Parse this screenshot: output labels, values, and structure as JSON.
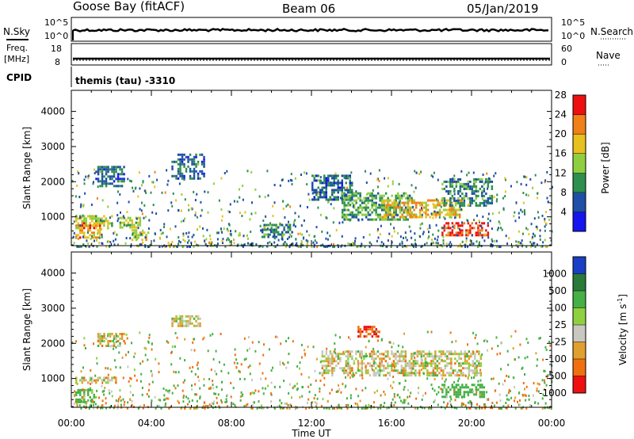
{
  "header": {
    "station": "Goose Bay (fitACF)",
    "beam": "Beam 06",
    "date": "05/Jan/2019"
  },
  "top_panels": {
    "nsky_label": "N.Sky",
    "nsearch_label": "N.Search",
    "left_ticks": [
      "10^5",
      "10^0"
    ],
    "right_ticks": [
      "10^5",
      "10^0"
    ],
    "freq_label_1": "Freq.",
    "freq_label_2": "[MHz]",
    "freq_ticks": [
      "18",
      "8"
    ],
    "nave_label": "Nave",
    "nave_ticks": [
      "60",
      "0"
    ],
    "cpid_label": "CPID",
    "cpid_value": "themis (tau) -3310"
  },
  "axes": {
    "ylabel": "Slant Range [km]",
    "xlabel": "Time UT",
    "y_ticks": [
      "1000",
      "2000",
      "3000",
      "4000"
    ],
    "x_ticks": [
      "00:00",
      "04:00",
      "08:00",
      "12:00",
      "16:00",
      "20:00",
      "00:00"
    ]
  },
  "colorbars": {
    "power": {
      "label": "Power [dB]",
      "ticks": [
        "4",
        "8",
        "12",
        "16",
        "20",
        "24",
        "28"
      ],
      "colors": [
        "#1515ee",
        "#1f4fa6",
        "#2f8f4f",
        "#8fcf3f",
        "#e8c020",
        "#f08018",
        "#ee1010"
      ]
    },
    "velocity": {
      "label": "Velocity [m s",
      "label_sup": "-1",
      "label_end": "]",
      "ticks": [
        "1000",
        "500",
        "100",
        "25",
        "-25",
        "-100",
        "-500",
        "-1000"
      ],
      "colors": [
        "#1a3fc4",
        "#2a7a3a",
        "#45b045",
        "#90d040",
        "#c8c8c0",
        "#e0a030",
        "#f07010",
        "#ee1010"
      ]
    }
  },
  "chart_data": [
    {
      "type": "heatmap",
      "name": "power",
      "xlim_hours": [
        0,
        24
      ],
      "ylim_km": [
        180,
        4600
      ],
      "colorbar_range_db": [
        0,
        30
      ],
      "regions": [
        {
          "t": [
            0.2,
            2.0
          ],
          "r": [
            700,
            1050
          ],
          "power": 16
        },
        {
          "t": [
            0.2,
            1.4
          ],
          "r": [
            400,
            850
          ],
          "power": 22
        },
        {
          "t": [
            1.2,
            2.6
          ],
          "r": [
            1900,
            2450
          ],
          "power": 8
        },
        {
          "t": [
            2.4,
            3.4
          ],
          "r": [
            700,
            1000
          ],
          "power": 16
        },
        {
          "t": [
            3.0,
            3.8
          ],
          "r": [
            350,
            650
          ],
          "power": 18
        },
        {
          "t": [
            5.0,
            6.6
          ],
          "r": [
            2100,
            2800
          ],
          "power": 8
        },
        {
          "t": [
            9.5,
            11.0
          ],
          "r": [
            400,
            800
          ],
          "power": 10
        },
        {
          "t": [
            12.0,
            14.0
          ],
          "r": [
            1500,
            2200
          ],
          "power": 8
        },
        {
          "t": [
            13.5,
            17.0
          ],
          "r": [
            900,
            1700
          ],
          "power": 12
        },
        {
          "t": [
            15.5,
            19.5
          ],
          "r": [
            1000,
            1500
          ],
          "power": 20
        },
        {
          "t": [
            18.5,
            21.0
          ],
          "r": [
            1300,
            2100
          ],
          "power": 10
        },
        {
          "t": [
            18.5,
            20.8
          ],
          "r": [
            500,
            850
          ],
          "power": 27
        }
      ]
    },
    {
      "type": "heatmap",
      "name": "velocity",
      "xlim_hours": [
        0,
        24
      ],
      "ylim_km": [
        180,
        4600
      ],
      "colorbar_range_ms": [
        -1000,
        1000
      ],
      "regions": [
        {
          "t": [
            0.2,
            2.2
          ],
          "r": [
            850,
            1050
          ],
          "velocity": 0
        },
        {
          "t": [
            0.2,
            1.2
          ],
          "r": [
            300,
            700
          ],
          "velocity": 100
        },
        {
          "t": [
            1.3,
            2.6
          ],
          "r": [
            1950,
            2300
          ],
          "velocity": 0
        },
        {
          "t": [
            5.0,
            6.4
          ],
          "r": [
            2500,
            2800
          ],
          "velocity": 0
        },
        {
          "t": [
            14.3,
            15.3
          ],
          "r": [
            2200,
            2500
          ],
          "velocity": -300
        },
        {
          "t": [
            12.5,
            20.5
          ],
          "r": [
            1100,
            1800
          ],
          "velocity": 0
        },
        {
          "t": [
            18.5,
            20.6
          ],
          "r": [
            500,
            850
          ],
          "velocity": 150
        }
      ]
    }
  ]
}
